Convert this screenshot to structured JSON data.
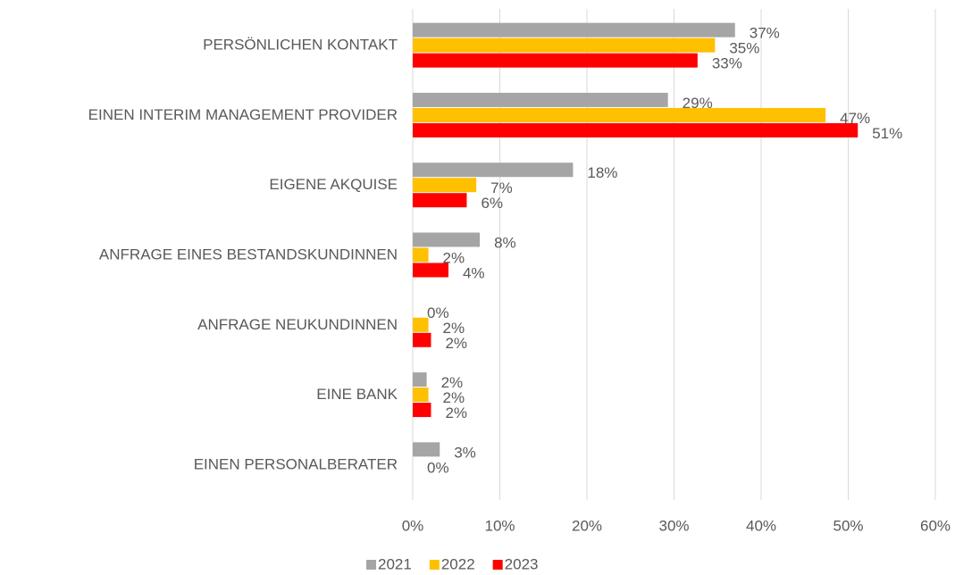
{
  "chart_data": {
    "type": "barh",
    "categories": [
      "PERSÖNLICHEN KONTAKT",
      "EINEN INTERIM MANAGEMENT PROVIDER",
      "EIGENE AKQUISE",
      "ANFRAGE EINES BESTANDSKUNDINNEN",
      "ANFRAGE  NEUKUNDINNEN",
      "EINE BANK",
      "EINEN PERSONALBERATER"
    ],
    "series": [
      {
        "name": "2021",
        "color": "#a5a5a5",
        "values": [
          37.0,
          29.3,
          18.4,
          7.7,
          0,
          1.6,
          3.1
        ],
        "value_labels": [
          "37%",
          "29%",
          "18%",
          "8%",
          "0%",
          "2%",
          "3%"
        ]
      },
      {
        "name": "2022",
        "color": "#ffc000",
        "values": [
          34.7,
          47.4,
          7.3,
          1.8,
          1.8,
          1.8,
          0
        ],
        "value_labels": [
          "35%",
          "47%",
          "7%",
          "2%",
          "2%",
          "2%",
          "0%"
        ]
      },
      {
        "name": "2023",
        "color": "#ff0000",
        "values": [
          32.7,
          51.1,
          6.2,
          4.1,
          2.1,
          2.1,
          null
        ],
        "value_labels": [
          "33%",
          "51%",
          "6%",
          "4%",
          "2%",
          "2%",
          null
        ]
      }
    ],
    "xlim": [
      0,
      60
    ],
    "xticks": [
      {
        "value": 0,
        "label": "0%"
      },
      {
        "value": 10,
        "label": "10%"
      },
      {
        "value": 20,
        "label": "20%"
      },
      {
        "value": 30,
        "label": "30%"
      },
      {
        "value": 40,
        "label": "40%"
      },
      {
        "value": 50,
        "label": "50%"
      },
      {
        "value": 60,
        "label": "60%"
      }
    ],
    "grid": true,
    "legend": "bottom"
  }
}
